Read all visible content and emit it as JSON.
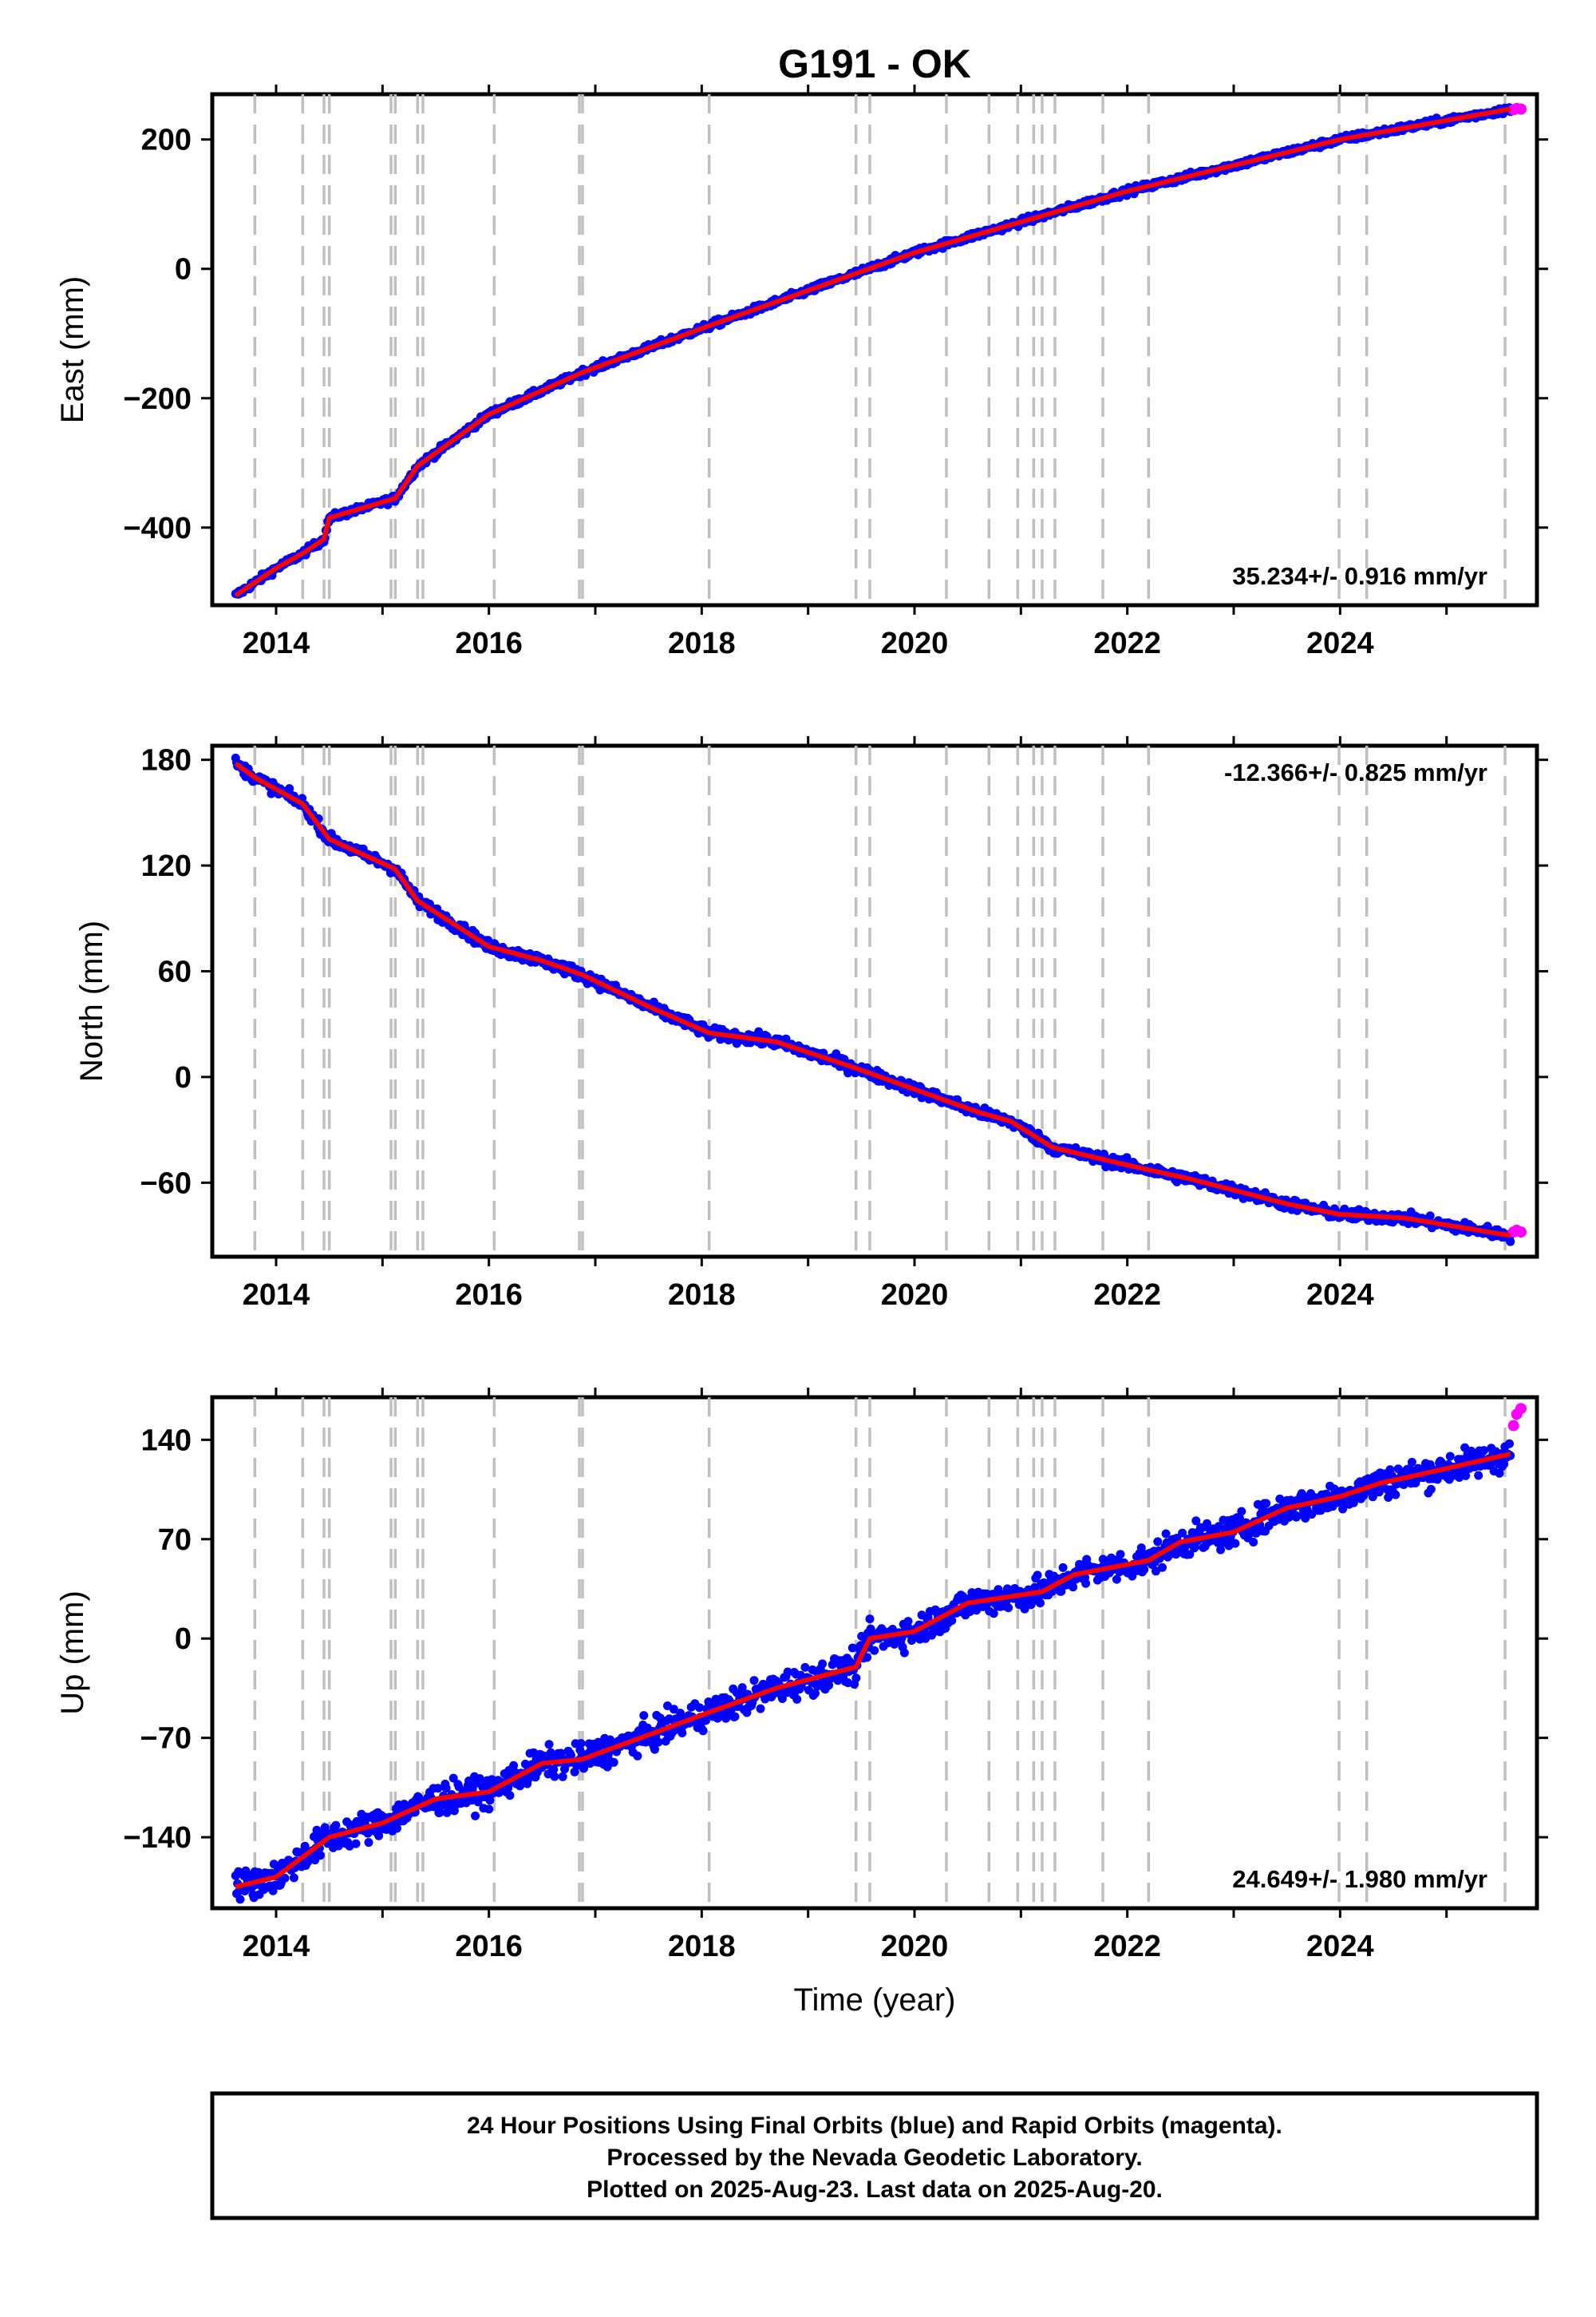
{
  "title": "G191 - OK",
  "colors": {
    "final": "#0000ff",
    "rapid": "#ff00ff",
    "model": "#ff0000",
    "breaks": "#bfbfbf"
  },
  "breaks": [
    2013.8,
    2014.25,
    2014.45,
    2014.5,
    2015.08,
    2015.12,
    2015.33,
    2015.38,
    2016.05,
    2016.85,
    2016.88,
    2018.07,
    2019.45,
    2019.58,
    2020.3,
    2020.7,
    2020.97,
    2021.12,
    2021.2,
    2021.32,
    2021.77,
    2022.2,
    2023.99,
    2024.25,
    2025.55
  ],
  "xlabel": "Time (year)",
  "xticks": [
    "2014",
    "2016",
    "2018",
    "2020",
    "2022",
    "2024"
  ],
  "chart_data": [
    {
      "type": "scatter",
      "component": "east",
      "ylabel": "East (mm)",
      "xlim": [
        2013.4,
        2025.85
      ],
      "ylim": [
        -520,
        270
      ],
      "yticks": [
        "200",
        "0",
        "−200",
        "−400"
      ],
      "ytick_values": [
        200,
        0,
        -200,
        -400
      ],
      "rate": "35.234+/- 0.916 mm/yr",
      "rate_position": "bottom-right",
      "trend": {
        "x": [
          2013.62,
          2013.8,
          2014.0,
          2014.25,
          2014.45,
          2014.5,
          2015.12,
          2015.33,
          2016.0,
          2016.88,
          2018.07,
          2020.0,
          2022.0,
          2024.0,
          2025.6
        ],
        "y": [
          -505,
          -485,
          -463,
          -440,
          -418,
          -385,
          -355,
          -305,
          -225,
          -160,
          -88,
          25,
          120,
          200,
          247
        ]
      },
      "rapid": {
        "x": [
          2025.63,
          2025.66,
          2025.7
        ],
        "y": [
          246,
          248,
          247
        ]
      },
      "noise": 5
    },
    {
      "type": "scatter",
      "component": "north",
      "ylabel": "North (mm)",
      "xlim": [
        2013.4,
        2025.85
      ],
      "ylim": [
        -102,
        188
      ],
      "yticks": [
        "180",
        "120",
        "60",
        "0",
        "−60"
      ],
      "ytick_values": [
        180,
        120,
        60,
        0,
        -60
      ],
      "rate": "-12.366+/- 0.825 mm/yr",
      "rate_position": "top-right",
      "trend": {
        "x": [
          2013.62,
          2013.8,
          2014.25,
          2014.5,
          2015.12,
          2015.33,
          2016.0,
          2016.5,
          2016.88,
          2017.5,
          2018.07,
          2018.7,
          2019.45,
          2020.0,
          2020.6,
          2020.9,
          2021.3,
          2022.0,
          2022.6,
          2023.5,
          2024.0,
          2024.6,
          2025.6
        ],
        "y": [
          178,
          170,
          155,
          135,
          118,
          100,
          74,
          66,
          58,
          40,
          25,
          20,
          5,
          -7,
          -20,
          -25,
          -40,
          -50,
          -58,
          -72,
          -78,
          -80,
          -90
        ]
      },
      "rapid": {
        "x": [
          2025.63,
          2025.66,
          2025.7
        ],
        "y": [
          -88,
          -87,
          -88
        ]
      },
      "noise": 3
    },
    {
      "type": "scatter",
      "component": "up",
      "ylabel": "Up (mm)",
      "xlim": [
        2013.4,
        2025.85
      ],
      "ylim": [
        -190,
        170
      ],
      "yticks": [
        "140",
        "70",
        "0",
        "−70",
        "−140"
      ],
      "ytick_values": [
        140,
        70,
        0,
        -70,
        -140
      ],
      "rate": "24.649+/- 1.980 mm/yr",
      "rate_position": "bottom-right",
      "trend": {
        "x": [
          2013.62,
          2014.0,
          2014.5,
          2015.0,
          2015.5,
          2016.0,
          2016.5,
          2016.88,
          2017.5,
          2018.07,
          2018.7,
          2019.45,
          2019.58,
          2020.0,
          2020.5,
          2021.2,
          2021.5,
          2022.2,
          2022.5,
          2023.0,
          2023.5,
          2024.0,
          2024.4,
          2024.6,
          2025.6
        ],
        "y": [
          -175,
          -168,
          -140,
          -130,
          -113,
          -108,
          -88,
          -85,
          -68,
          -52,
          -35,
          -20,
          0,
          5,
          25,
          33,
          45,
          55,
          68,
          75,
          92,
          100,
          110,
          113,
          130
        ]
      },
      "rapid": {
        "x": [
          2025.63,
          2025.66,
          2025.7
        ],
        "y": [
          150,
          158,
          162
        ]
      },
      "noise": 10
    }
  ],
  "footer": {
    "line1": "24 Hour Positions Using Final Orbits (blue) and Rapid Orbits (magenta).",
    "line2": "Processed by the Nevada Geodetic Laboratory.",
    "line3": "Plotted on 2025-Aug-23. Last data on 2025-Aug-20."
  }
}
